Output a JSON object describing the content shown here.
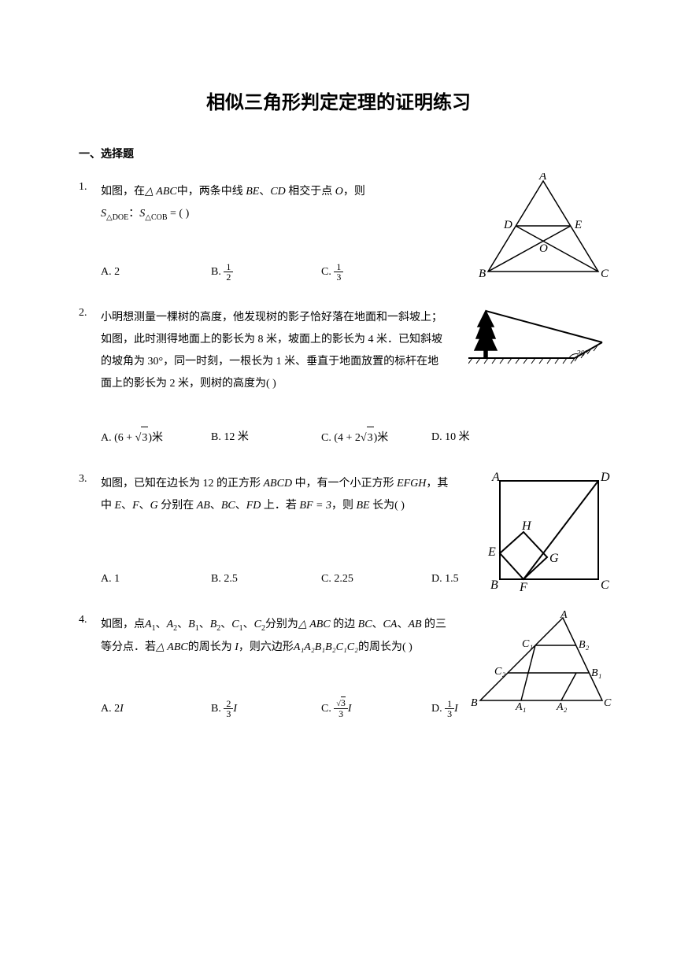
{
  "title": "相似三角形判定定理的证明练习",
  "section_header": "一、选择题",
  "questions": [
    {
      "num": "1.",
      "text_parts": {
        "p1": "如图，在",
        "p2": "中，两条中线",
        "p3": "、",
        "p4": "相交于点",
        "p5": "，则"
      },
      "triangle": "△ ABC",
      "be": "BE",
      "cd": "CD",
      "o": "O",
      "ratio_left": "S",
      "ratio_sub1": "△DOE",
      "ratio_colon": "：",
      "ratio_sub2": "△COB",
      "ratio_eq": " = (    )",
      "options": {
        "a": "A. 2",
        "b_label": "B. ",
        "b_num": "1",
        "b_den": "2",
        "c_label": "C. ",
        "c_num": "1",
        "c_den": "3"
      },
      "fig_labels": {
        "A": "A",
        "B": "B",
        "C": "C",
        "D": "D",
        "E": "E",
        "O": "O"
      }
    },
    {
      "num": "2.",
      "text": "小明想测量一棵树的高度，他发现树的影子恰好落在地面和一斜坡上；如图，此时测得地面上的影长为 8 米，坡面上的影长为 4 米．已知斜坡的坡角为 30°，同一时刻，一根长为 1 米、垂直于地面放置的标杆在地面上的影长为 2 米，则树的高度为(    )",
      "angle_label": "30°",
      "options": {
        "a_label": "A. (6 + ",
        "a_sqrt": "3",
        "a_suffix": ")米",
        "b": "B. 12 米",
        "c_label": "C. (4 + 2",
        "c_sqrt": "3",
        "c_suffix": ")米",
        "d": "D. 10 米"
      }
    },
    {
      "num": "3.",
      "text_parts": {
        "p1": "如图，已知在边长为 12 的正方形",
        "p2": "中，有一个小正方形",
        "p3": "，其中",
        "p4": "、",
        "p5": "、",
        "p6": "分别在",
        "p7": "、",
        "p8": "、",
        "p9": "上．若",
        "p10": "，则",
        "p11": "长为(    )"
      },
      "abcd": "ABCD",
      "efgh": "EFGH",
      "e": "E",
      "f": "F",
      "g": "G",
      "ab": "AB",
      "bc": "BC",
      "fd": "FD",
      "bf": "BF = 3",
      "be": "BE",
      "options": {
        "a": "A. 1",
        "b": "B. 2.5",
        "c": "C. 2.25",
        "d": "D. 1.5"
      },
      "fig_labels": {
        "A": "A",
        "B": "B",
        "C": "C",
        "D": "D",
        "E": "E",
        "F": "F",
        "G": "G",
        "H": "H"
      }
    },
    {
      "num": "4.",
      "text_parts": {
        "p1": "如图，点",
        "p2": "、",
        "p3": "、",
        "p4": "、",
        "p5": "、",
        "p6": "、",
        "p7": "分别为",
        "p8": "的边",
        "p9": "、",
        "p10": "、",
        "p11": "的三等分点．若",
        "p12": "的周长为",
        "p13": "，则六边形",
        "p14": "的周长为(    )"
      },
      "a1": "A",
      "a1s": "1",
      "a2": "A",
      "a2s": "2",
      "b1": "B",
      "b1s": "1",
      "b2": "B",
      "b2s": "2",
      "c1": "C",
      "c1s": "1",
      "c2": "C",
      "c2s": "2",
      "abc": "△ ABC",
      "bc": "BC",
      "ca": "CA",
      "ab": "AB",
      "I": "I",
      "hex": "A₁A₂B₁B₂C₁C₂",
      "options": {
        "a_label": "A. 2",
        "a_var": "I",
        "b_label": "B. ",
        "b_num": "2",
        "b_den": "3",
        "b_var": "I",
        "c_label": "C. ",
        "c_num": "√3",
        "c_den": "3",
        "c_var": "I",
        "d_label": "D. ",
        "d_num": "1",
        "d_den": "3",
        "d_var": "I"
      },
      "fig_labels": {
        "A": "A",
        "B": "B",
        "C": "C",
        "A1": "A₁",
        "A2": "A₂",
        "B1": "B₁",
        "B2": "B₂",
        "C1": "C₁",
        "C2": "C₂"
      }
    }
  ],
  "colors": {
    "text": "#000000",
    "bg": "#ffffff",
    "line": "#000000"
  }
}
